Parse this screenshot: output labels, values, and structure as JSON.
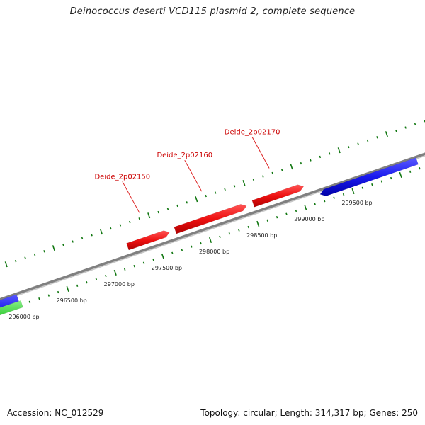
{
  "title": "Deinococcus deserti VCD115 plasmid 2, complete sequence",
  "footer": {
    "accession": "Accession: NC_012529",
    "summary": "Topology: circular; Length: 314,317 bp; Genes: 250"
  },
  "colors": {
    "backbone": "#808080",
    "forward_gene": "#ee1111",
    "reverse_gene": "#1a1aee",
    "other_gene": "#33cc33",
    "ticks": "#117711",
    "label": "#cc0000"
  },
  "genes": [
    {
      "name": "Deide_2p02150",
      "start": 297200,
      "end": 297640,
      "strand": "forward",
      "labeled": true
    },
    {
      "name": "Deide_2p02160",
      "start": 297700,
      "end": 298450,
      "strand": "forward",
      "labeled": true
    },
    {
      "name": "Deide_2p02170",
      "start": 298520,
      "end": 299050,
      "strand": "forward",
      "labeled": true
    },
    {
      "name": "",
      "start": 299180,
      "end": 300200,
      "strand": "reverse",
      "labeled": false
    },
    {
      "name": "",
      "start": 295200,
      "end": 296000,
      "strand": "reverse",
      "labeled": false
    },
    {
      "name": "",
      "start": 295200,
      "end": 296020,
      "strand": "other",
      "labeled": false
    }
  ],
  "ticks": {
    "start": 295600,
    "end": 300400,
    "minor_step": 100,
    "major_step": 500,
    "labels": [
      {
        "bp": 296000,
        "text": "296000 bp"
      },
      {
        "bp": 296500,
        "text": "296500 bp"
      },
      {
        "bp": 297000,
        "text": "297000 bp"
      },
      {
        "bp": 297500,
        "text": "297500 bp"
      },
      {
        "bp": 298000,
        "text": "298000 bp"
      },
      {
        "bp": 298500,
        "text": "298500 bp"
      },
      {
        "bp": 299000,
        "text": "299000 bp"
      },
      {
        "bp": 299500,
        "text": "299500 bp"
      }
    ]
  }
}
